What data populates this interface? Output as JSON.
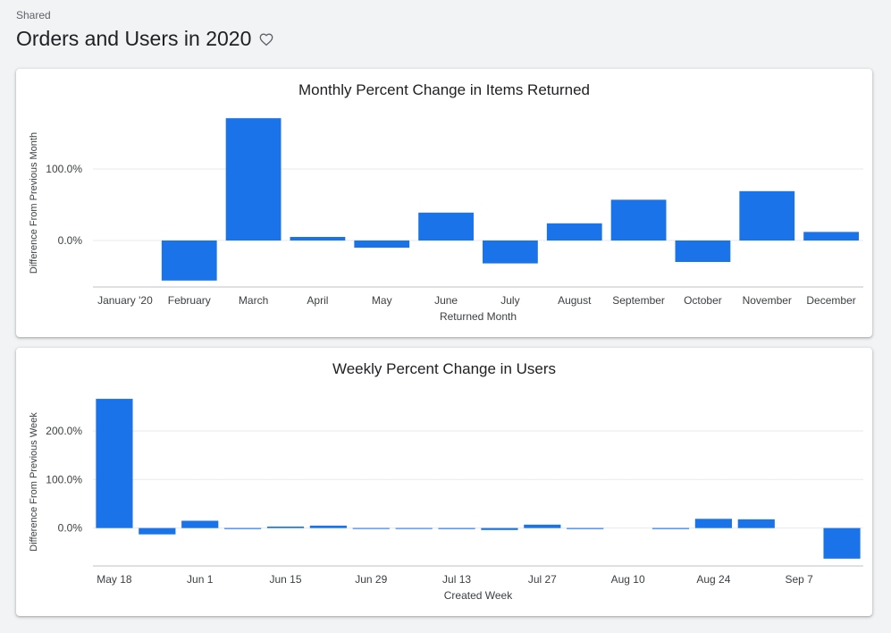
{
  "header": {
    "breadcrumb": "Shared",
    "title": "Orders and Users in 2020",
    "favorite_icon": "heart-outline-icon"
  },
  "colors": {
    "bar": "#1a73e8",
    "grid": "#e8eaed",
    "axis": "#bdc1c6"
  },
  "chart_data": [
    {
      "type": "bar",
      "title": "Monthly Percent Change in Items Returned",
      "xlabel": "Returned Month",
      "ylabel": "Difference From Previous Month",
      "ylim": [
        -65,
        170
      ],
      "yticks": [
        0,
        100
      ],
      "ytick_labels": [
        "0.0%",
        "100.0%"
      ],
      "grid": true,
      "legend": "none",
      "categories": [
        "January '20",
        "February",
        "March",
        "April",
        "May",
        "June",
        "July",
        "August",
        "September",
        "October",
        "November",
        "December"
      ],
      "values": [
        null,
        -56,
        171,
        5,
        -10,
        39,
        -32,
        24,
        57,
        -30,
        69,
        12
      ]
    },
    {
      "type": "bar",
      "title": "Weekly Percent Change in Users",
      "xlabel": "Created Week",
      "ylabel": "Difference From Previous Week",
      "ylim": [
        -78,
        268
      ],
      "yticks": [
        0,
        100,
        200
      ],
      "ytick_labels": [
        "0.0%",
        "100.0%",
        "200.0%"
      ],
      "grid": true,
      "legend": "none",
      "x_tick_labels": [
        "May 18",
        "Jun 1",
        "Jun 15",
        "Jun 29",
        "Jul 13",
        "Jul 27",
        "Aug 10",
        "Aug 24",
        "Sep 7"
      ],
      "values": [
        266,
        -13,
        15,
        -2,
        3,
        5,
        -1,
        -1,
        -2,
        -4,
        7,
        -2,
        null,
        -2,
        19,
        18,
        null,
        -63
      ]
    }
  ]
}
